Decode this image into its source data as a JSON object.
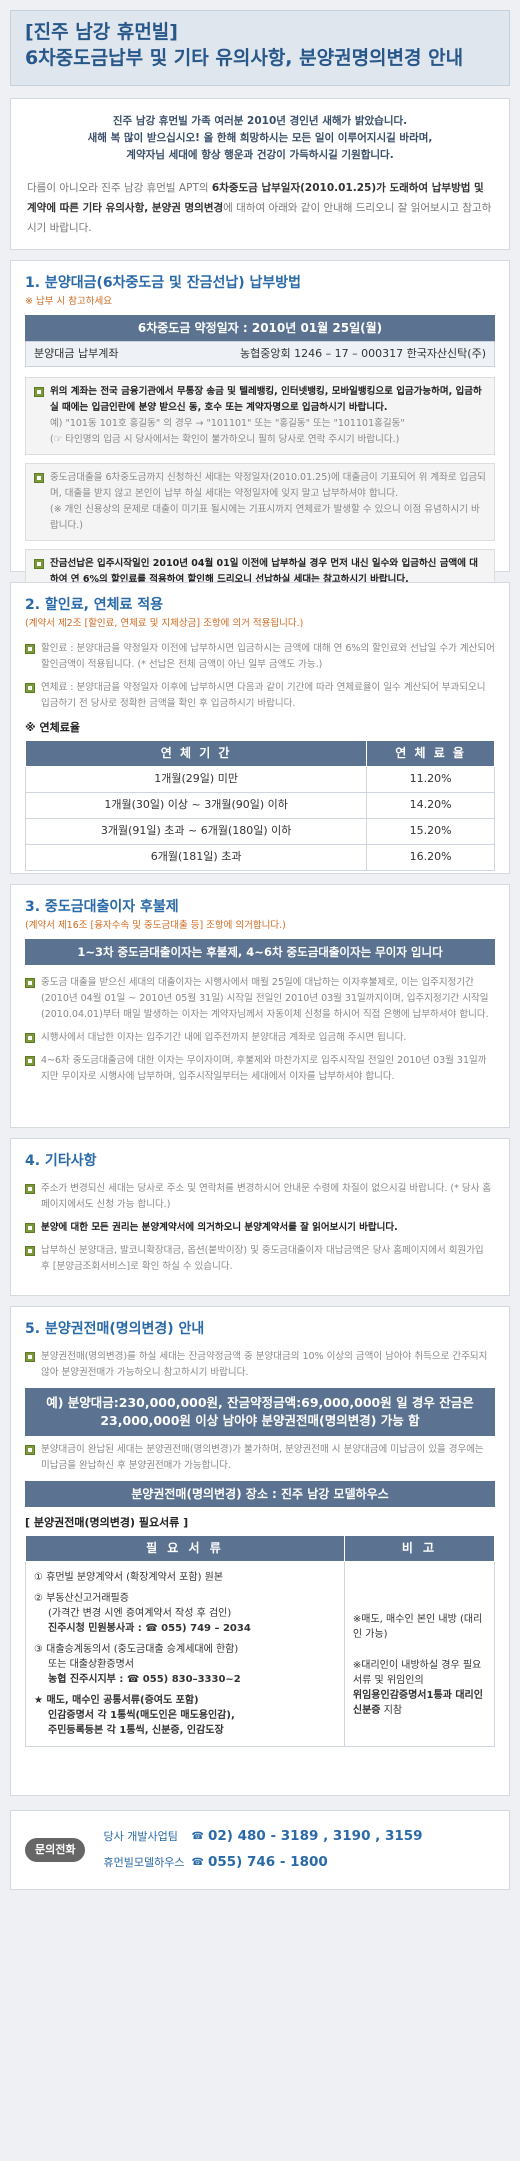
{
  "header": {
    "title_line1": "[진주 남강 휴먼빌]",
    "title_line2": "6차중도금납부 및 기타 유의사항, 분양권명의변경 안내"
  },
  "intro": {
    "greeting_1": "진주 남강 휴먼빌 가족 여러분 2010년 경인년 새해가 밝았습니다.",
    "greeting_2": "새해 복 많이 받으십시오! 올 한해 희망하시는 모든 일이 이루어지시길 바라며,",
    "greeting_3": "계약자님 세대에 항상 행운과 건강이 가득하시길 기원합니다.",
    "body_1": "다름이 아니오라 진주 남강 휴먼빌 APT의",
    "body_bold": "6차중도금 납부일자(2010.01.25)가 도래하여 납부방법 및 계약에 따른 기타 유의사항, 분양권 명의변경",
    "body_2": "에 대하여 아래와 같이 안내해 드리오니 잘 읽어보시고 참고하시기 바랍니다."
  },
  "sec1": {
    "title": "1. 분양대금(6차중도금 및 잔금선납) 납부방법",
    "note": "※ 납부 시 참고하세요",
    "bar": "6차중도금 약정일자 : 2010년 01월 25일(월)",
    "account_label": "분양대금 납부계좌",
    "account_value": "농협중앙회  1246 – 17 – 000317  한국자산신탁(주)",
    "b1": "위의 계좌는 전국 금융기관에서 무통장 송금 및 텔레뱅킹, 인터넷뱅킹, 모바일뱅킹으로 입금가능하며, 입금하실 때에는 입금인란에 분양 받으신 동, 호수 또는 계약자명으로 입금하시기 바랍니다.",
    "b1_ex": "예) \"101동 101호 홍길동\" 의 경우 → \"101101\"  또는  \"홍길동\"  또는  \"101101홍길동\"",
    "b1_ex2": "(☞ 타인명의 입금 시 당사에서는 확인이 불가하오니 필히 당사로 연락 주시기 바랍니다.)",
    "b2": "중도금대출을 6차중도금까지 신청하신 세대는 약정일자(2010.01.25)에 대출금이 기표되어 위 계좌로 입금되며, 대출을 받지 않고 본인이 납부 하실 세대는 약정일자에 잊지 말고 납부하셔야 합니다.",
    "b2_note": "(※ 개인 신용상의 문제로 대출이 미기표 될시에는 기표시까지 연체료가 발생할 수 있으니 이점 유념하시기 바랍니다.)",
    "b3": "잔금선납은 입주시작일인 2010년 04월 01일 이전에 납부하실 경우 먼저 내신 일수와 입금하신 금액에 대하여 연 6%의 할인료를 적용하여 할인해 드리오니 선납하실 세대는 참고하시기 바랍니다."
  },
  "sec2": {
    "title": "2. 할인료, 연체료 적용",
    "note": "(계약서 제2조 [할인료, 연체료 및 지체상금] 조항에 의거 적용됩니다.)",
    "b1": "할인료 : 분양대금을 약정일자 이전에 납부하시면 입금하시는 금액에 대해 연 6%의 할인료와 선납일 수가 계산되어 할인금액이 적용됩니다. (* 선납은 전체 금액이 아닌 일부 금액도 가능.)",
    "b2": "연체료 : 분양대금을 약정일자 이후에 납부하시면 다음과 같이 기간에 따라 연체료율이 일수 계산되어 부과되오니 입금하기 전 당사로 정확한 금액을 확인 후 입금하시기 바랍니다.",
    "rate_head": "※ 연체료율",
    "col1": "연 체 기 간",
    "col2": "연 체 료 율",
    "rows": [
      [
        "1개월(29일) 미만",
        "11.20%"
      ],
      [
        "1개월(30일) 이상 ~ 3개월(90일) 이하",
        "14.20%"
      ],
      [
        "3개월(91일) 초과 ~ 6개월(180일) 이하",
        "15.20%"
      ],
      [
        "6개월(181일) 초과",
        "16.20%"
      ]
    ]
  },
  "sec3": {
    "title": "3. 중도금대출이자 후불제",
    "note": "(계약서 제16조 [융자수속 및 중도금대출 등] 조항에 의거합니다.)",
    "bar": "1~3차 중도금대출이자는 후불제, 4~6차 중도금대출이자는 무이자 입니다",
    "b1": "중도금 대출을 받으신 세대의 대출이자는 시행사에서 매월 25일에 대납하는 이자후불제로, 이는 입주지정기간(2010년 04월 01일 ~ 2010년 05월 31일) 시작일 전일인 2010년 03월 31일까지이며, 입주지정기간 시작일(2010.04.01)부터 매일 발생하는 이자는 계약자님께서 자동이체 신청을 하시어 직접 은행에 납부하셔야 합니다.",
    "b2": "시행사에서 대납한 이자는 입주기간 내에 입주전까지 분양대금 계좌로 입금해 주시면 됩니다.",
    "b3": "4~6차 중도금대출금에 대한 이자는 무이자이며, 후불제와 마찬가지로 입주시작일 전일인 2010년 03월 31일까지만 무이자로 시행사에 납부하며, 입주시작일부터는 세대에서 이자를 납부하셔야 합니다."
  },
  "sec4": {
    "title": "4. 기타사항",
    "b1": "주소가 변경되신 세대는 당사로 주소 및 연락처를 변경하시어 안내문 수령에 차질이 없으시길 바랍니다. (* 당사 홈페이지에서도 신청 가능 합니다.)",
    "b2": "분양에 대한 모든 권리는 분양계약서에 의거하오니 분양계약서를 잘 읽어보시기 바랍니다.",
    "b3": "납부하신 분양대금, 발코니확장대금, 옵션(붙박이장) 및 중도금대출이자 대납금액은 당사 홈페이지에서 회원가입 후 [분양금조회서비스]로 확인 하실 수 있습니다."
  },
  "sec5": {
    "title": "5. 분양권전매(명의변경) 안내",
    "b1": "분양권전매(명의변경)를 하실 세대는 잔금약정금액 중 분양대금의 10% 이상의 금액이 남아야 취득으로 간주되지 않아 분양권전매가 가능하오니 참고하시기 바랍니다.",
    "example": "예) 분양대금:230,000,000원,  잔금약정금액:69,000,000원 일 경우 잔금은 23,000,000원 이상 남아야 분양권전매(명의변경) 가능 함",
    "b2": "분양대금이 완납된 세대는 분양권전매(명의변경)가 불가하며, 분양권전매 시 분양대금에 미납금이 있을 경우에는 미납금을 완납하신 후 분양권전매가 가능합니다.",
    "place": "분양권전매(명의변경) 장소 : 진주 남강 모델하우스",
    "docs_title": "[ 분양권전매(명의변경) 필요서류 ]",
    "col1": "필 요 서 류",
    "col2": "비 고",
    "docs": [
      "① 휴먼빌 분양계약서 (확장계약서 포함) 원본",
      "② 부동산신고거래필증",
      "(가격간 변경 시엔 증여계약서 작성 후 검인)",
      "진주시청 민원봉사과 : ☎ 055) 749 – 2034",
      "③ 대출승계동의서 (중도금대출 승계세대에 한함)",
      "또는 대출상환증명서",
      "농협 진주시지부 : ☎ 055) 830–3330~2",
      "★ 매도, 매수인 공통서류(증여도 포함)",
      "인감증명서 각 1통씩(매도인은 매도용인감),",
      "주민등록등본 각 1통씩, 신분증, 인감도장"
    ],
    "remark_1": "※매도, 매수인 본인 내방 (대리인 가능)",
    "remark_2": "※대리인이 내방하실 경우 필요서류 및 위임인의",
    "remark_bold": "위임용인감증명서1통과 대리인 신분증",
    "remark_3": "지참"
  },
  "contact": {
    "badge": "문의전화",
    "rows": [
      {
        "name": "당사 개발사업팀",
        "tel": "02) 480 - 3189 , 3190 , 3159"
      },
      {
        "name": "휴먼빌모델하우스",
        "tel": "055) 746 - 1800"
      }
    ]
  }
}
